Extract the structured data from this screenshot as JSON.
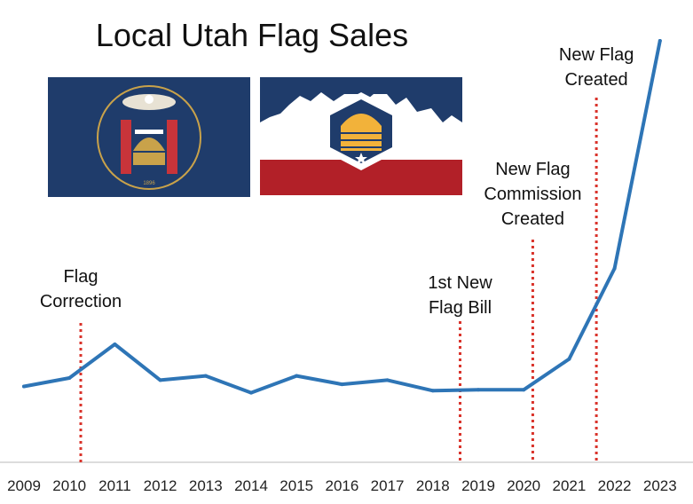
{
  "chart_data": {
    "type": "line",
    "title": "Local Utah Flag Sales",
    "xlabel": "",
    "ylabel": "",
    "x": [
      "2009",
      "2010",
      "2011",
      "2012",
      "2013",
      "2014",
      "2015",
      "2016",
      "2017",
      "2018",
      "2019",
      "2020",
      "2021",
      "2022",
      "2023"
    ],
    "series": [
      {
        "values": [
          18,
          20,
          28,
          19.5,
          20.5,
          16.5,
          20.5,
          18.5,
          19.5,
          17,
          17.2,
          17.2,
          24.5,
          46,
          100
        ]
      }
    ],
    "ylim": [
      0,
      100
    ],
    "grid": false,
    "line_color": "#2e75b6",
    "annotation_color": "#d9332b",
    "annotations": [
      {
        "label_lines": [
          "Flag",
          "Correction"
        ],
        "x": 2010.25
      },
      {
        "label_lines": [
          "1st New",
          "Flag Bill"
        ],
        "x": 2018.6
      },
      {
        "label_lines": [
          "New Flag",
          "Commission",
          "Created"
        ],
        "x": 2020.2
      },
      {
        "label_lines": [
          "New Flag",
          "Created"
        ],
        "x": 2021.6
      }
    ],
    "images": [
      {
        "name": "utah-state-flag-1896",
        "seal_year": "1896"
      },
      {
        "name": "utah-new-flag"
      }
    ]
  }
}
